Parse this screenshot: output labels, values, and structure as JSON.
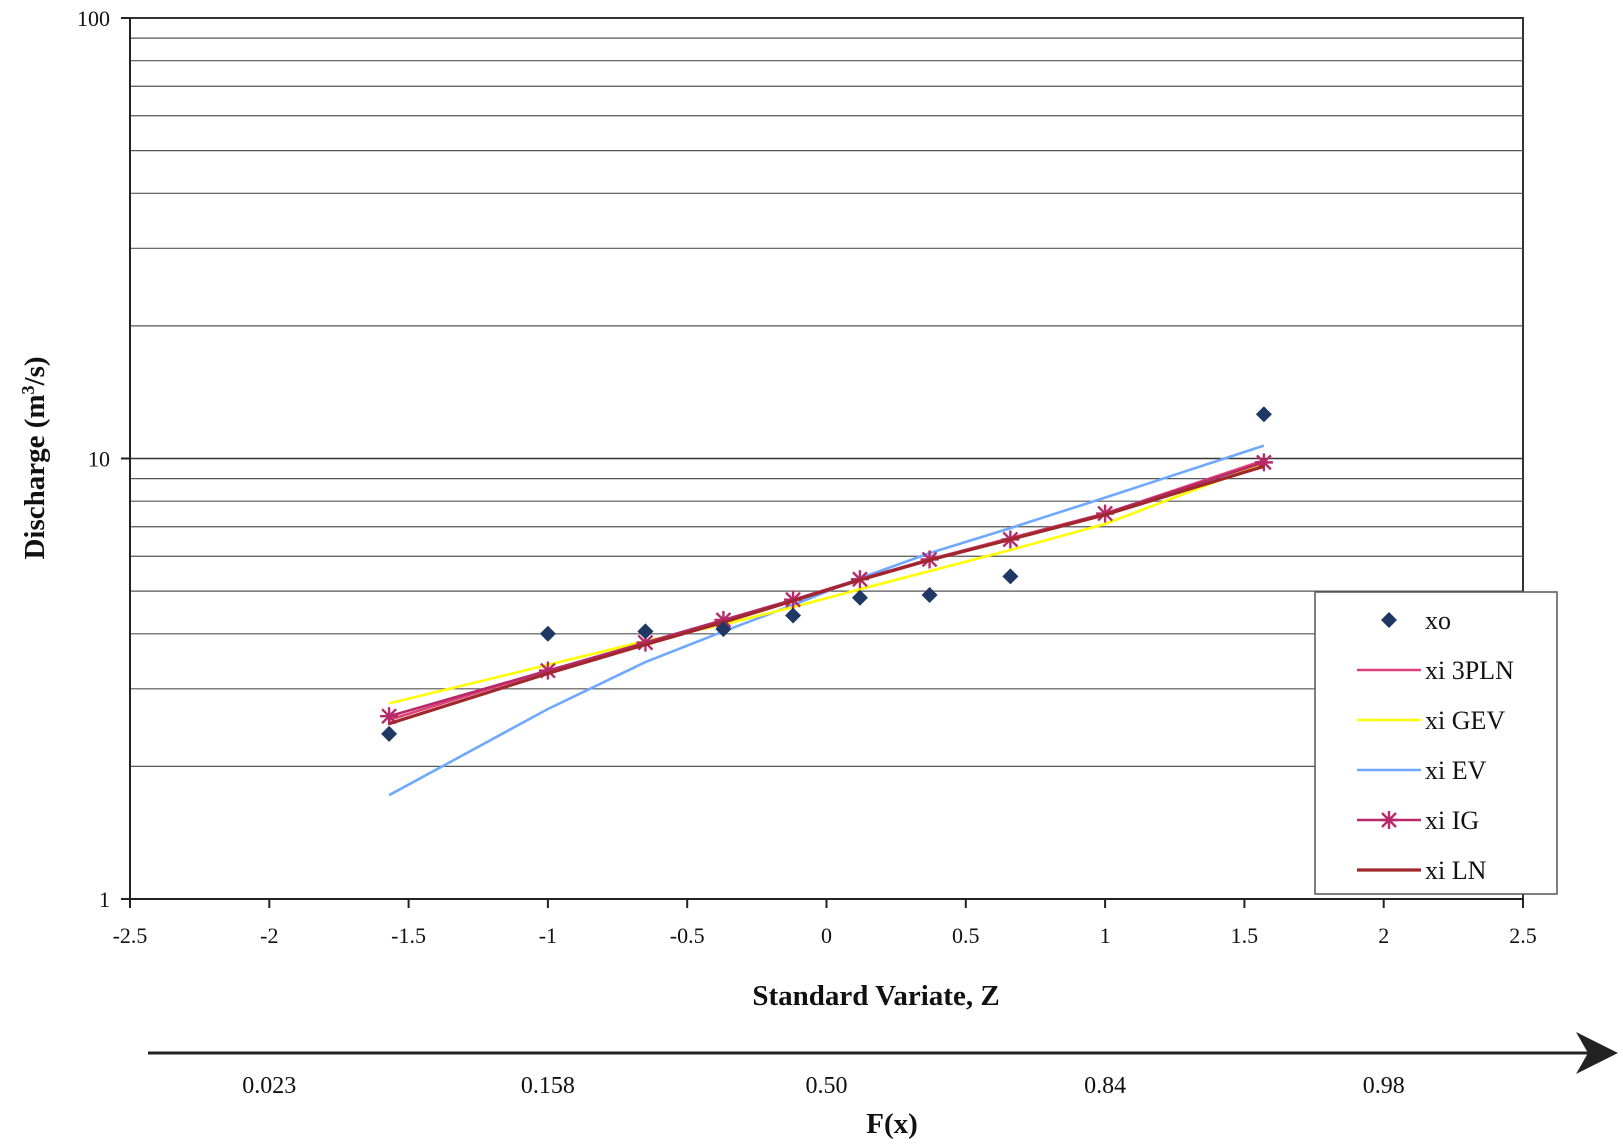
{
  "chart_data": {
    "type": "line",
    "title": "",
    "xlabel": "Standard Variate, Z",
    "ylabel": "Discharge (m³/s)",
    "ylabel_base": "Discharge (m",
    "ylabel_sup": "3",
    "ylabel_tail": "/s)",
    "x_scale": "linear",
    "y_scale": "log",
    "xlim": [
      -2.5,
      2.5
    ],
    "ylim": [
      1,
      100
    ],
    "x_ticks": [
      -2.5,
      -2,
      -1.5,
      -1,
      -0.5,
      0,
      0.5,
      1,
      1.5,
      2,
      2.5
    ],
    "x_tick_labels": [
      "-2.5",
      "-2",
      "-1.5",
      "-1",
      "-0.5",
      "0",
      "0.5",
      "1",
      "1.5",
      "2",
      "2.5"
    ],
    "y_ticks": [
      1,
      10,
      100
    ],
    "y_tick_labels": [
      "1",
      "10",
      "100"
    ],
    "grid": "horizontal",
    "legend_position": "lower-right",
    "series": [
      {
        "name": "xo",
        "kind": "scatter",
        "marker": "diamond",
        "color": "#1f3864",
        "x": [
          -1.57,
          -1.0,
          -0.65,
          -0.37,
          -0.12,
          0.12,
          0.37,
          0.66,
          1.57
        ],
        "y": [
          2.37,
          4.0,
          4.05,
          4.1,
          4.4,
          4.83,
          4.9,
          5.4,
          12.6
        ]
      },
      {
        "name": "xi 3PLN",
        "kind": "line",
        "color": "#e0407a",
        "x": [
          -1.57,
          -1.0,
          -0.65,
          -0.37,
          -0.12,
          0.12,
          0.37,
          0.66,
          1.0,
          1.57
        ],
        "y": [
          2.55,
          3.3,
          3.8,
          4.25,
          4.75,
          5.3,
          5.9,
          6.6,
          7.5,
          9.9
        ]
      },
      {
        "name": "xi GEV",
        "kind": "line",
        "color": "#ffff00",
        "x": [
          -1.57,
          -1.0,
          -0.65,
          -0.37,
          -0.12,
          0.12,
          0.37,
          0.66,
          1.0,
          1.57
        ],
        "y": [
          2.78,
          3.4,
          3.85,
          4.2,
          4.6,
          5.05,
          5.55,
          6.2,
          7.1,
          9.75
        ]
      },
      {
        "name": "xi EV",
        "kind": "line",
        "color": "#6fa8ff",
        "x": [
          -1.57,
          -1.0,
          -0.65,
          -0.37,
          -0.12,
          0.12,
          0.37,
          0.66,
          1.0,
          1.57
        ],
        "y": [
          1.72,
          2.7,
          3.45,
          4.05,
          4.65,
          5.35,
          6.1,
          6.95,
          8.15,
          10.7
        ]
      },
      {
        "name": "xi IG",
        "kind": "line",
        "marker": "star",
        "color": "#b8296a",
        "x": [
          -1.57,
          -1.0,
          -0.65,
          -0.37,
          -0.12,
          0.12,
          0.37,
          0.66,
          1.0,
          1.57
        ],
        "y": [
          2.6,
          3.3,
          3.82,
          4.3,
          4.78,
          5.32,
          5.9,
          6.55,
          7.5,
          9.8
        ]
      },
      {
        "name": "xi LN",
        "kind": "line",
        "color": "#a0282c",
        "x": [
          -1.57,
          -1.0,
          -0.65,
          -0.37,
          -0.12,
          0.12,
          0.37,
          0.66,
          1.0,
          1.57
        ],
        "y": [
          2.5,
          3.25,
          3.78,
          4.25,
          4.75,
          5.3,
          5.88,
          6.55,
          7.45,
          9.6
        ]
      }
    ],
    "probability_axis": {
      "label": "F(x)",
      "z_positions": [
        -2.0,
        -1.0,
        0.0,
        1.0,
        2.0
      ],
      "labels": [
        "0.023",
        "0.158",
        "0.50",
        "0.84",
        "0.98"
      ]
    }
  }
}
